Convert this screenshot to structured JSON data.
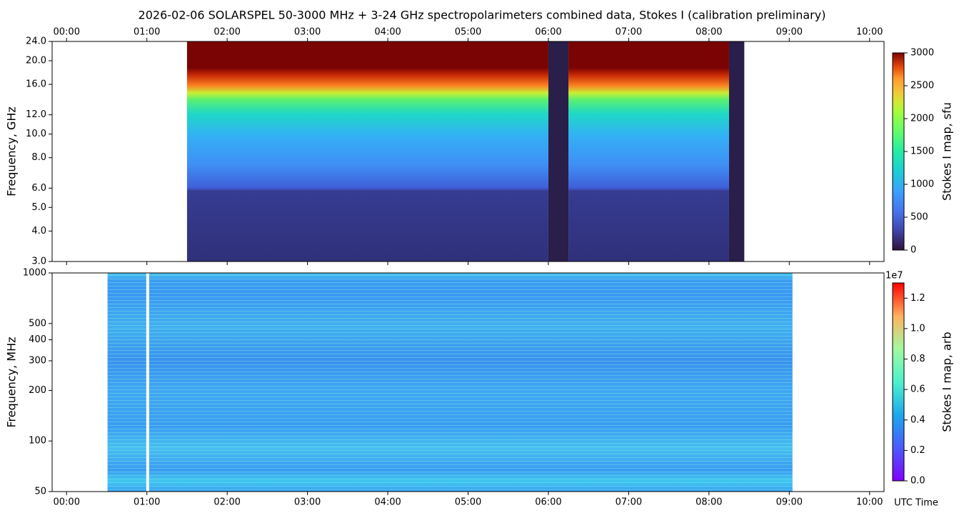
{
  "chart_data": [
    {
      "type": "heatmap",
      "title": "2026-02-06  SOLARSPEL  50-3000 MHz  +  3-24 GHz  spectropolarimeters combined data,  Stokes I  (calibration preliminary)",
      "y_label": "Frequency, GHz",
      "xlim": [
        -0.18,
        10.18
      ],
      "xticks": [
        {
          "value": 0,
          "label": "00:00"
        },
        {
          "value": 1,
          "label": "01:00"
        },
        {
          "value": 2,
          "label": "02:00"
        },
        {
          "value": 3,
          "label": "03:00"
        },
        {
          "value": 4,
          "label": "04:00"
        },
        {
          "value": 5,
          "label": "05:00"
        },
        {
          "value": 6,
          "label": "06:00"
        },
        {
          "value": 7,
          "label": "07:00"
        },
        {
          "value": 8,
          "label": "08:00"
        },
        {
          "value": 9,
          "label": "09:00"
        },
        {
          "value": 10,
          "label": "10:00"
        }
      ],
      "ylim": [
        3,
        24
      ],
      "y_log": true,
      "yticks": [
        {
          "value": 3,
          "label": "3.0"
        },
        {
          "value": 4,
          "label": "4.0"
        },
        {
          "value": 5,
          "label": "5.0"
        },
        {
          "value": 6,
          "label": "6.0"
        },
        {
          "value": 8,
          "label": "8.0"
        },
        {
          "value": 10,
          "label": "10.0"
        },
        {
          "value": 12,
          "label": "12.0"
        },
        {
          "value": 16,
          "label": "16.0"
        },
        {
          "value": 20,
          "label": "20.0"
        },
        {
          "value": 24,
          "label": "24.0"
        }
      ],
      "data_spans": [
        [
          1.5,
          6.0
        ],
        [
          6.25,
          8.25
        ]
      ],
      "gap_spans": [
        [
          6.0,
          6.25
        ],
        [
          8.25,
          8.44
        ]
      ],
      "colormap": "turbo",
      "colorbar_label": "Stokes I map, sfu",
      "clim": [
        0,
        3000
      ],
      "cticks": [
        0,
        500,
        1000,
        1500,
        2000,
        2500,
        3000
      ]
    },
    {
      "type": "heatmap",
      "y_label": "Frequency, MHz",
      "x_label": "UTC Time",
      "xlim": [
        -0.18,
        10.18
      ],
      "xticks": [
        {
          "value": 0,
          "label": "00:00"
        },
        {
          "value": 1,
          "label": "01:00"
        },
        {
          "value": 2,
          "label": "02:00"
        },
        {
          "value": 3,
          "label": "03:00"
        },
        {
          "value": 4,
          "label": "04:00"
        },
        {
          "value": 5,
          "label": "05:00"
        },
        {
          "value": 6,
          "label": "06:00"
        },
        {
          "value": 7,
          "label": "07:00"
        },
        {
          "value": 8,
          "label": "08:00"
        },
        {
          "value": 9,
          "label": "09:00"
        },
        {
          "value": 10,
          "label": "10:00"
        }
      ],
      "ylim": [
        50,
        1000
      ],
      "y_log": true,
      "yticks": [
        50,
        100,
        200,
        300,
        400,
        500,
        1000
      ],
      "data_spans": [
        [
          0.51,
          9.04
        ]
      ],
      "gap_lines": [
        1.01
      ],
      "colormap": "rainbow",
      "colorbar_label": "Stokes I map, arb",
      "colorbar_offset": "1e7",
      "clim": [
        0,
        13000000
      ],
      "cticks": [
        {
          "value": 0,
          "label": "0.0"
        },
        {
          "value": 2000000,
          "label": "0.2"
        },
        {
          "value": 4000000,
          "label": "0.4"
        },
        {
          "value": 6000000,
          "label": "0.6"
        },
        {
          "value": 8000000,
          "label": "0.8"
        },
        {
          "value": 10000000,
          "label": "1.0"
        },
        {
          "value": 12000000,
          "label": "1.2"
        }
      ]
    }
  ]
}
